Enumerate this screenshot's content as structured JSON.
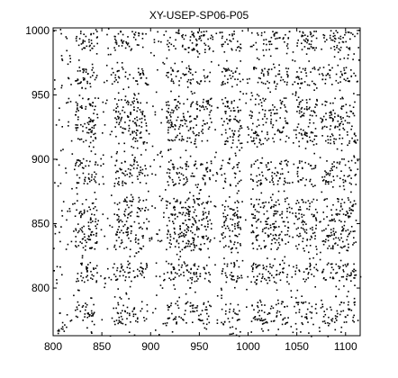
{
  "chart_data": {
    "type": "scatter",
    "title": "XY-USEP-SP06-P05",
    "xlabel": "",
    "ylabel": "",
    "xlim": [
      800,
      1115
    ],
    "ylim": [
      763,
      1002
    ],
    "xticks": [
      800,
      850,
      900,
      950,
      1000,
      1050,
      1100
    ],
    "yticks": [
      800,
      850,
      900,
      950,
      1000
    ],
    "xtick_labels": [
      "800",
      "850",
      "900",
      "950",
      "1000",
      "1050",
      "1100"
    ],
    "ytick_labels": [
      "800",
      "850",
      "900",
      "950",
      "1000"
    ],
    "grid": false,
    "marker_color": "#000000",
    "pattern": {
      "description_free": true,
      "dense_x_bands": [
        [
          822,
          845
        ],
        [
          862,
          896
        ],
        [
          915,
          962
        ],
        [
          972,
          992
        ],
        [
          1002,
          1042
        ],
        [
          1048,
          1070
        ],
        [
          1075,
          1110
        ]
      ],
      "dense_y_bands": [
        [
          772,
          790
        ],
        [
          805,
          820
        ],
        [
          830,
          870
        ],
        [
          880,
          900
        ],
        [
          912,
          948
        ],
        [
          958,
          972
        ],
        [
          985,
          1000
        ]
      ],
      "seed": 7
    }
  }
}
